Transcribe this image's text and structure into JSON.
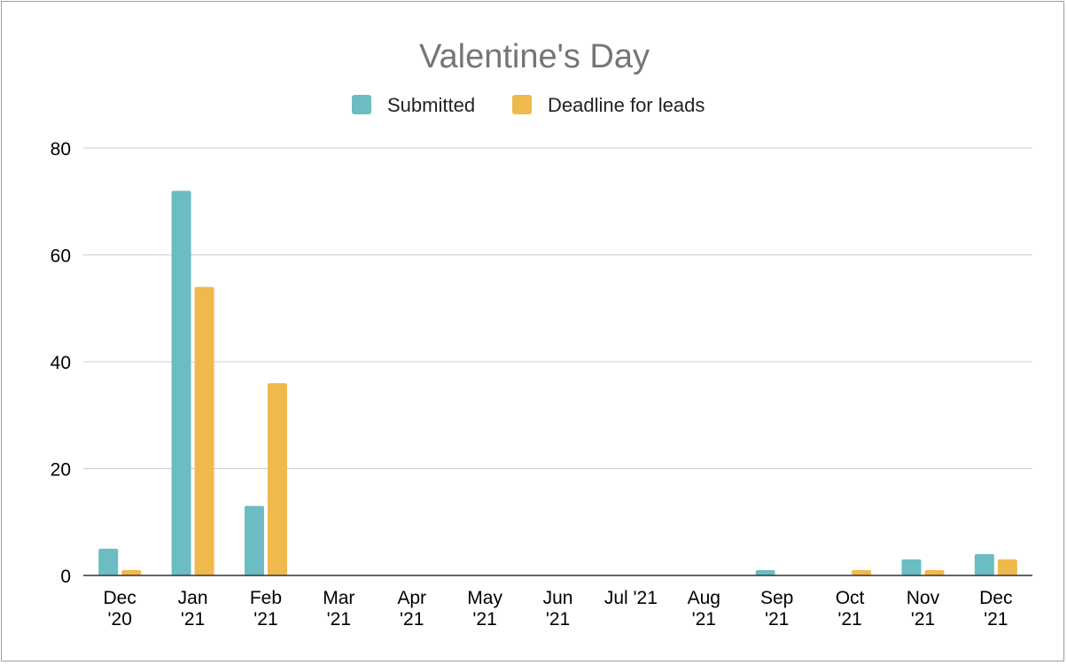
{
  "chart_data": {
    "type": "bar",
    "title": "Valentine's Day",
    "xlabel": "",
    "ylabel": "",
    "ylim": [
      0,
      80
    ],
    "yticks": [
      0,
      20,
      40,
      60,
      80
    ],
    "grid": true,
    "legend_position": "top-center",
    "categories": [
      [
        "Dec",
        "'20"
      ],
      [
        "Jan",
        "'21"
      ],
      [
        "Feb",
        "'21"
      ],
      [
        "Mar",
        "'21"
      ],
      [
        "Apr",
        "'21"
      ],
      [
        "May",
        "'21"
      ],
      [
        "Jun",
        "'21"
      ],
      [
        "Jul '21"
      ],
      [
        "Aug",
        "'21"
      ],
      [
        "Sep",
        "'21"
      ],
      [
        "Oct",
        "'21"
      ],
      [
        "Nov",
        "'21"
      ],
      [
        "Dec",
        "'21"
      ]
    ],
    "series": [
      {
        "name": "Submitted",
        "color": "#6bbcc3",
        "values": [
          5,
          72,
          13,
          0,
          0,
          0,
          0,
          0,
          0,
          1,
          0,
          3,
          4
        ]
      },
      {
        "name": "Deadline for leads",
        "color": "#f0b94d",
        "values": [
          1,
          54,
          36,
          0,
          0,
          0,
          0,
          0,
          0,
          0,
          1,
          1,
          3
        ]
      }
    ]
  }
}
